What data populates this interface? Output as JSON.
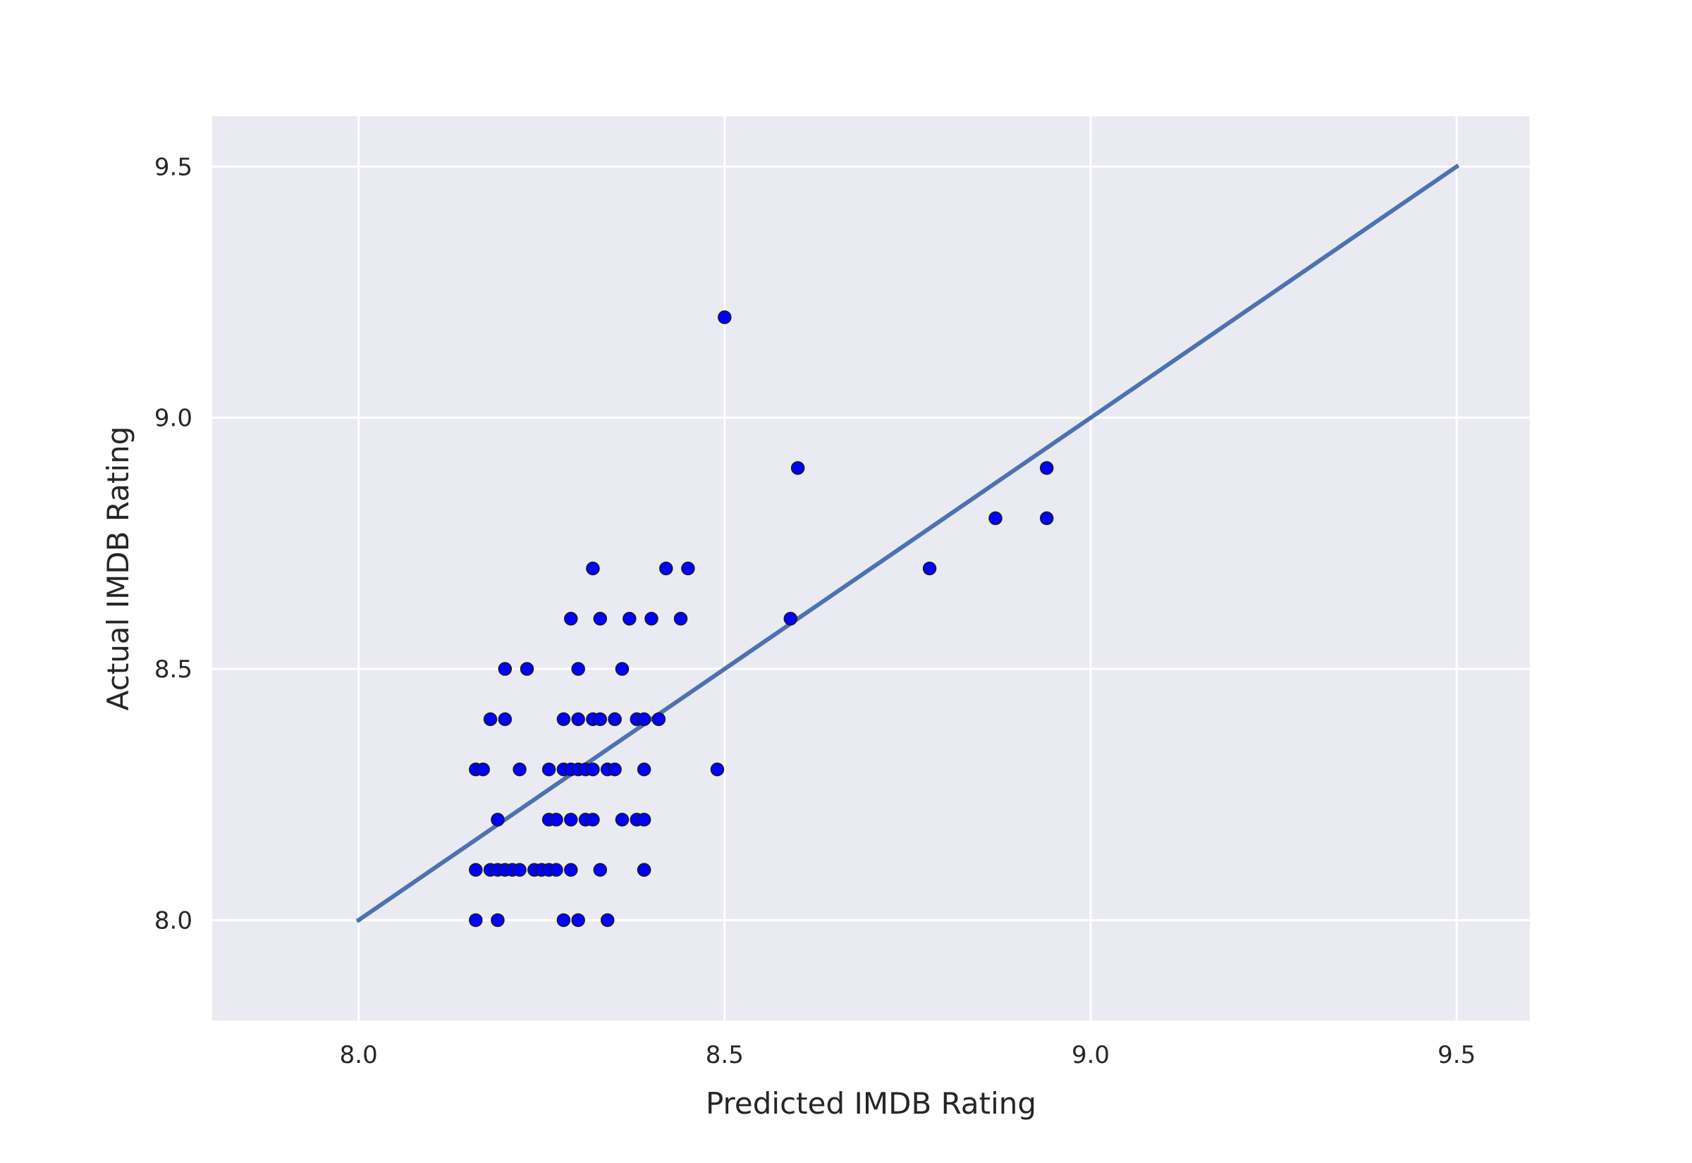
{
  "chart_data": {
    "type": "scatter",
    "title": "",
    "xlabel": "Predicted IMDB Rating",
    "ylabel": "Actual IMDB Rating",
    "xlim": [
      7.8,
      9.6
    ],
    "ylim": [
      7.8,
      9.6
    ],
    "xticks": [
      8.0,
      8.5,
      9.0,
      9.5
    ],
    "yticks": [
      8.0,
      8.5,
      9.0,
      9.5
    ],
    "xtick_labels": [
      "8.0",
      "8.5",
      "9.0",
      "9.5"
    ],
    "ytick_labels": [
      "8.0",
      "8.5",
      "9.0",
      "9.5"
    ],
    "grid": true,
    "background_color": "#EAEAF2",
    "point_color": "#0000FF",
    "line_color": "#4C72B0",
    "reference_line": {
      "x": [
        8.0,
        9.5
      ],
      "y": [
        8.0,
        9.5
      ]
    },
    "points": [
      {
        "x": 8.5,
        "y": 9.2
      },
      {
        "x": 8.6,
        "y": 8.9
      },
      {
        "x": 8.94,
        "y": 8.9
      },
      {
        "x": 8.87,
        "y": 8.8
      },
      {
        "x": 8.94,
        "y": 8.8
      },
      {
        "x": 8.32,
        "y": 8.7
      },
      {
        "x": 8.42,
        "y": 8.7
      },
      {
        "x": 8.45,
        "y": 8.7
      },
      {
        "x": 8.78,
        "y": 8.7
      },
      {
        "x": 8.29,
        "y": 8.6
      },
      {
        "x": 8.33,
        "y": 8.6
      },
      {
        "x": 8.37,
        "y": 8.6
      },
      {
        "x": 8.4,
        "y": 8.6
      },
      {
        "x": 8.44,
        "y": 8.6
      },
      {
        "x": 8.59,
        "y": 8.6
      },
      {
        "x": 8.2,
        "y": 8.5
      },
      {
        "x": 8.23,
        "y": 8.5
      },
      {
        "x": 8.3,
        "y": 8.5
      },
      {
        "x": 8.36,
        "y": 8.5
      },
      {
        "x": 8.18,
        "y": 8.4
      },
      {
        "x": 8.2,
        "y": 8.4
      },
      {
        "x": 8.28,
        "y": 8.4
      },
      {
        "x": 8.3,
        "y": 8.4
      },
      {
        "x": 8.32,
        "y": 8.4
      },
      {
        "x": 8.33,
        "y": 8.4
      },
      {
        "x": 8.35,
        "y": 8.4
      },
      {
        "x": 8.35,
        "y": 8.4
      },
      {
        "x": 8.38,
        "y": 8.4
      },
      {
        "x": 8.39,
        "y": 8.4
      },
      {
        "x": 8.41,
        "y": 8.4
      },
      {
        "x": 8.16,
        "y": 8.3
      },
      {
        "x": 8.17,
        "y": 8.3
      },
      {
        "x": 8.22,
        "y": 8.3
      },
      {
        "x": 8.26,
        "y": 8.3
      },
      {
        "x": 8.28,
        "y": 8.3
      },
      {
        "x": 8.29,
        "y": 8.3
      },
      {
        "x": 8.3,
        "y": 8.3
      },
      {
        "x": 8.31,
        "y": 8.3
      },
      {
        "x": 8.32,
        "y": 8.3
      },
      {
        "x": 8.34,
        "y": 8.3
      },
      {
        "x": 8.35,
        "y": 8.3
      },
      {
        "x": 8.39,
        "y": 8.3
      },
      {
        "x": 8.49,
        "y": 8.3
      },
      {
        "x": 8.19,
        "y": 8.2
      },
      {
        "x": 8.26,
        "y": 8.2
      },
      {
        "x": 8.27,
        "y": 8.2
      },
      {
        "x": 8.29,
        "y": 8.2
      },
      {
        "x": 8.31,
        "y": 8.2
      },
      {
        "x": 8.32,
        "y": 8.2
      },
      {
        "x": 8.36,
        "y": 8.2
      },
      {
        "x": 8.38,
        "y": 8.2
      },
      {
        "x": 8.39,
        "y": 8.2
      },
      {
        "x": 8.16,
        "y": 8.1
      },
      {
        "x": 8.18,
        "y": 8.1
      },
      {
        "x": 8.19,
        "y": 8.1
      },
      {
        "x": 8.2,
        "y": 8.1
      },
      {
        "x": 8.21,
        "y": 8.1
      },
      {
        "x": 8.22,
        "y": 8.1
      },
      {
        "x": 8.24,
        "y": 8.1
      },
      {
        "x": 8.25,
        "y": 8.1
      },
      {
        "x": 8.26,
        "y": 8.1
      },
      {
        "x": 8.27,
        "y": 8.1
      },
      {
        "x": 8.29,
        "y": 8.1
      },
      {
        "x": 8.33,
        "y": 8.1
      },
      {
        "x": 8.39,
        "y": 8.1
      },
      {
        "x": 8.39,
        "y": 8.1
      },
      {
        "x": 8.16,
        "y": 8.0
      },
      {
        "x": 8.19,
        "y": 8.0
      },
      {
        "x": 8.28,
        "y": 8.0
      },
      {
        "x": 8.3,
        "y": 8.0
      },
      {
        "x": 8.34,
        "y": 8.0
      }
    ]
  }
}
